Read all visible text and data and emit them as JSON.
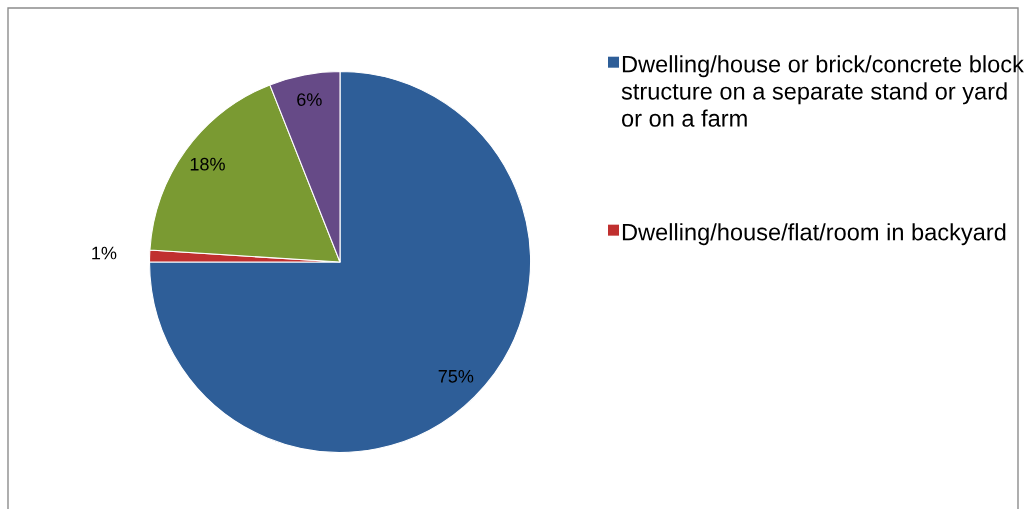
{
  "chart_data": {
    "type": "pie",
    "categories": [
      "Dwelling/house or brick/concrete block structure on a separate stand or yard or on a farm",
      "Dwelling/house/flat/room in backyard",
      null,
      null
    ],
    "values": [
      75,
      1,
      18,
      6
    ],
    "colors": [
      "#2e5e98",
      "#c0302f",
      "#7a9a32",
      "#664a87"
    ],
    "value_labels": [
      "75%",
      "1%",
      "18%",
      "6%"
    ],
    "legend": "right"
  }
}
